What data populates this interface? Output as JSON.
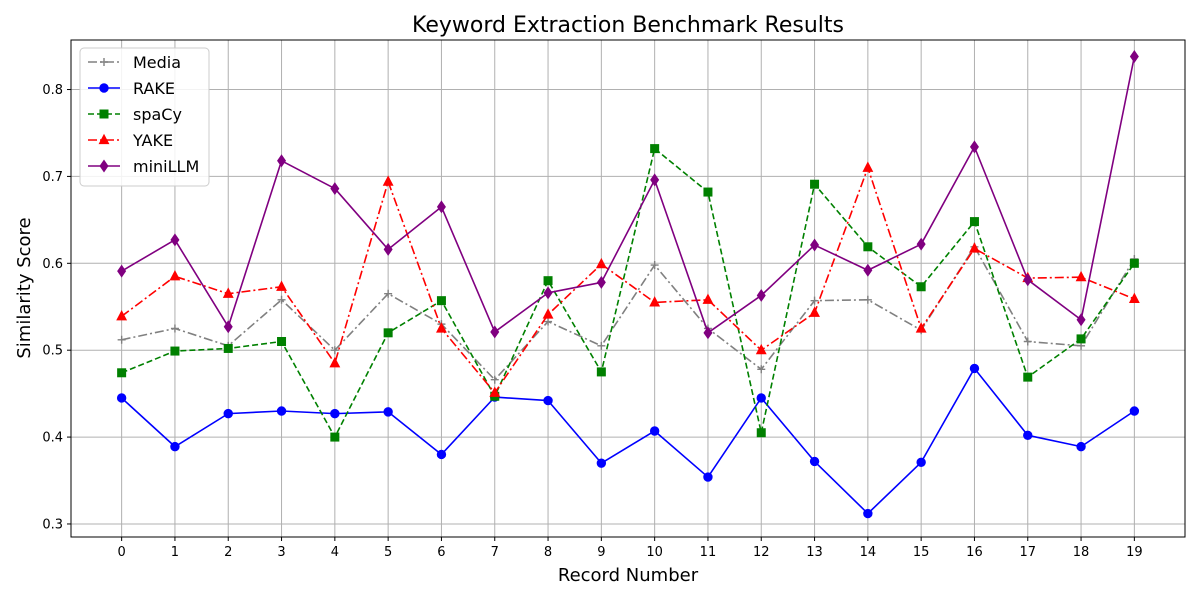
{
  "chart_data": {
    "type": "line",
    "title": "Keyword Extraction Benchmark Results",
    "xlabel": "Record Number",
    "ylabel": "Similarity Score",
    "x": [
      0,
      1,
      2,
      3,
      4,
      5,
      6,
      7,
      8,
      9,
      10,
      11,
      12,
      13,
      14,
      15,
      16,
      17,
      18,
      19
    ],
    "xlim": [
      -0.95,
      19.95
    ],
    "ylim": [
      0.285,
      0.857
    ],
    "yticks": [
      0.3,
      0.4,
      0.5,
      0.6,
      0.7,
      0.8
    ],
    "ytick_labels": [
      "0.3",
      "0.4",
      "0.5",
      "0.6",
      "0.7",
      "0.8"
    ],
    "grid": true,
    "legend_position": "top-left",
    "series": [
      {
        "name": "Media",
        "color": "#808080",
        "linestyle": "dashdot",
        "marker": "plus",
        "values": [
          0.512,
          0.525,
          0.505,
          0.558,
          0.5,
          0.565,
          0.53,
          0.466,
          0.533,
          0.505,
          0.598,
          0.525,
          0.478,
          0.557,
          0.558,
          0.523,
          0.619,
          0.51,
          0.505,
          0.605
        ]
      },
      {
        "name": "RAKE",
        "color": "#0000ff",
        "linestyle": "solid",
        "marker": "circle",
        "values": [
          0.445,
          0.389,
          0.427,
          0.43,
          0.427,
          0.429,
          0.38,
          0.446,
          0.442,
          0.37,
          0.407,
          0.354,
          0.445,
          0.372,
          0.312,
          0.371,
          0.479,
          0.402,
          0.389,
          0.43
        ]
      },
      {
        "name": "spaCy",
        "color": "#008000",
        "linestyle": "dashed",
        "marker": "square",
        "values": [
          0.474,
          0.499,
          0.502,
          0.51,
          0.4,
          0.52,
          0.557,
          0.447,
          0.58,
          0.475,
          0.732,
          0.682,
          0.405,
          0.691,
          0.619,
          0.573,
          0.648,
          0.469,
          0.513,
          0.6
        ]
      },
      {
        "name": "YAKE",
        "color": "#ff0000",
        "linestyle": "dashdot",
        "marker": "triangle",
        "values": [
          0.539,
          0.585,
          0.565,
          0.573,
          0.485,
          0.694,
          0.525,
          0.451,
          0.541,
          0.599,
          0.555,
          0.558,
          0.5,
          0.543,
          0.71,
          0.525,
          0.617,
          0.583,
          0.584,
          0.559
        ]
      },
      {
        "name": "miniLLM",
        "color": "#800080",
        "linestyle": "solid",
        "marker": "diamond",
        "values": [
          0.591,
          0.627,
          0.527,
          0.718,
          0.686,
          0.616,
          0.665,
          0.521,
          0.566,
          0.578,
          0.696,
          0.52,
          0.563,
          0.621,
          0.592,
          0.622,
          0.734,
          0.581,
          0.535,
          0.838
        ]
      }
    ]
  }
}
